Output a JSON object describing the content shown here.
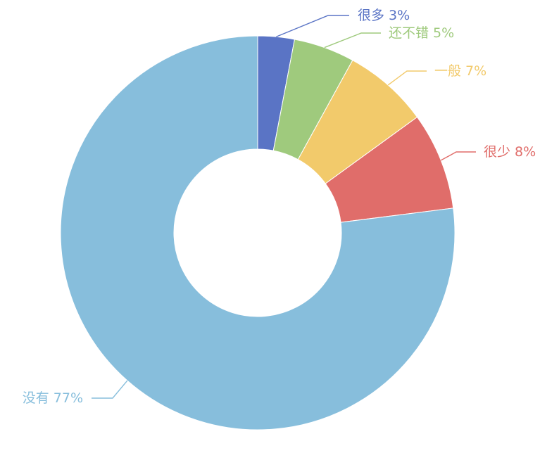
{
  "chart_data": {
    "type": "pie",
    "variant": "donut",
    "title": "",
    "categories": [
      "很多",
      "还不错",
      "一般",
      "很少",
      "没有"
    ],
    "values": [
      3,
      5,
      7,
      8,
      77
    ],
    "unit": "%",
    "colors": [
      "#5a74c5",
      "#9fca7d",
      "#f2ca6b",
      "#e06d6a",
      "#87bedc"
    ],
    "legend": "none",
    "start_angle": "top, clockwise"
  }
}
